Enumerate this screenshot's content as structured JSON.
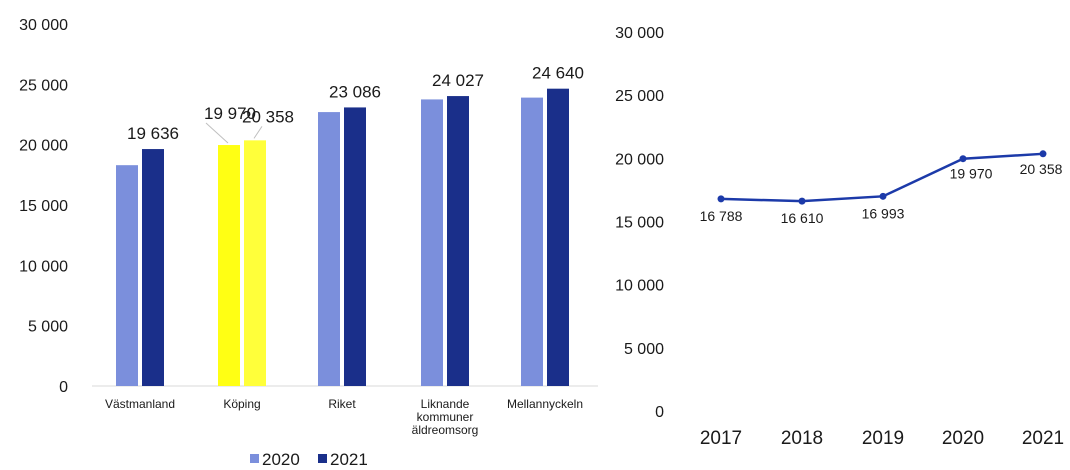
{
  "chart_data": [
    {
      "type": "bar",
      "categories": [
        "Västmanland",
        "Köping",
        "Riket",
        [
          "Liknande",
          "kommuner",
          "äldreomsorg"
        ],
        "Mellannyckeln"
      ],
      "series": [
        {
          "name": "2020",
          "values": [
            18300,
            19970,
            22700,
            23750,
            23900
          ]
        },
        {
          "name": "2021",
          "values": [
            19636,
            20358,
            23086,
            24027,
            24640
          ]
        }
      ],
      "data_labels": [
        {
          "series": 0,
          "index": 1,
          "text": "19 970"
        },
        {
          "series": 1,
          "index": 0,
          "text": "19 636"
        },
        {
          "series": 1,
          "index": 1,
          "text": "20 358"
        },
        {
          "series": 1,
          "index": 2,
          "text": "23 086"
        },
        {
          "series": 1,
          "index": 3,
          "text": "24 027"
        },
        {
          "series": 1,
          "index": 4,
          "text": "24 640"
        }
      ],
      "yticks": [
        "0",
        "5 000",
        "10 000",
        "15 000",
        "20 000",
        "25 000",
        "30 000"
      ],
      "ylim": [
        0,
        30000
      ],
      "legend": {
        "position": "bottom",
        "entries": [
          "2020",
          "2021"
        ]
      },
      "colors": {
        "2020": "#7b8fdc",
        "2021": "#1a2f8a",
        "highlight_2020": "#ffff14",
        "highlight_2021": "#ffff3a"
      },
      "highlight_category": "Köping",
      "grid": false
    },
    {
      "type": "line",
      "x": [
        "2017",
        "2018",
        "2019",
        "2020",
        "2021"
      ],
      "series": [
        {
          "values": [
            16788,
            16610,
            16993,
            19970,
            20358
          ]
        }
      ],
      "data_labels": [
        "16 788",
        "16 610",
        "16 993",
        "19 970",
        "20 358"
      ],
      "yticks": [
        "0",
        "5 000",
        "10 000",
        "15 000",
        "20 000",
        "25 000",
        "30 000"
      ],
      "ylim": [
        0,
        30000
      ],
      "colors": {
        "line": "#1c3aa9"
      },
      "grid": false
    }
  ]
}
